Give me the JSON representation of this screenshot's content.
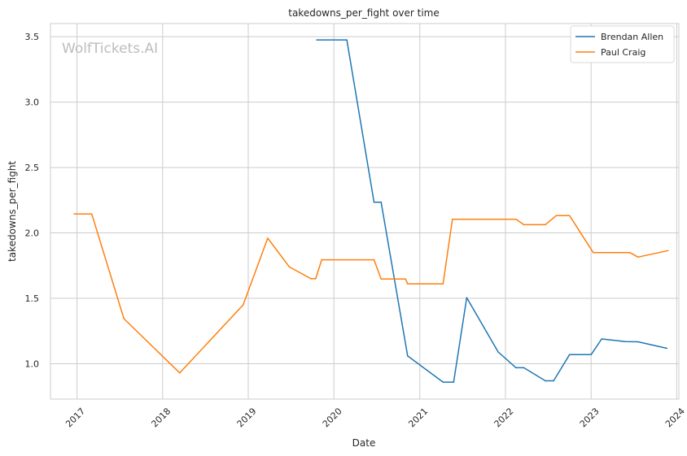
{
  "chart_data": {
    "type": "line",
    "title": "takedowns_per_fight over time",
    "xlabel": "Date",
    "ylabel": "takedowns_per_fight",
    "watermark": "WolfTickets.AI",
    "ylim": [
      0.73,
      3.6
    ],
    "xlim": [
      "2016-09-10",
      "2024-01-10"
    ],
    "x_ticks": [
      "2017",
      "2018",
      "2019",
      "2020",
      "2021",
      "2022",
      "2023",
      "2024"
    ],
    "y_ticks": [
      "1.0",
      "1.5",
      "2.0",
      "2.5",
      "3.0",
      "3.5"
    ],
    "grid": true,
    "legend_position": "top-right",
    "series": [
      {
        "name": "Brendan Allen",
        "color": "#1f77b4",
        "points": [
          [
            "2019-10-20",
            3.475
          ],
          [
            "2020-02-25",
            3.475
          ],
          [
            "2020-06-20",
            2.235
          ],
          [
            "2020-07-20",
            2.235
          ],
          [
            "2020-11-10",
            1.06
          ],
          [
            "2021-04-10",
            0.86
          ],
          [
            "2021-05-25",
            0.86
          ],
          [
            "2021-07-20",
            1.505
          ],
          [
            "2021-12-01",
            1.09
          ],
          [
            "2022-02-15",
            0.97
          ],
          [
            "2022-03-20",
            0.97
          ],
          [
            "2022-06-20",
            0.87
          ],
          [
            "2022-07-25",
            0.87
          ],
          [
            "2022-10-01",
            1.07
          ],
          [
            "2023-01-01",
            1.07
          ],
          [
            "2023-02-15",
            1.19
          ],
          [
            "2023-05-25",
            1.17
          ],
          [
            "2023-07-20",
            1.168
          ],
          [
            "2023-11-20",
            1.118
          ]
        ]
      },
      {
        "name": "Paul Craig",
        "color": "#ff7f0e",
        "points": [
          [
            "2016-12-20",
            2.145
          ],
          [
            "2017-03-05",
            2.145
          ],
          [
            "2017-07-20",
            1.345
          ],
          [
            "2018-03-15",
            0.93
          ],
          [
            "2018-12-10",
            1.45
          ],
          [
            "2019-03-25",
            1.96
          ],
          [
            "2019-06-25",
            1.74
          ],
          [
            "2019-09-25",
            1.65
          ],
          [
            "2019-10-15",
            1.65
          ],
          [
            "2019-11-10",
            1.795
          ],
          [
            "2020-06-20",
            1.795
          ],
          [
            "2020-07-20",
            1.648
          ],
          [
            "2020-11-01",
            1.648
          ],
          [
            "2020-11-10",
            1.61
          ],
          [
            "2021-04-10",
            1.61
          ],
          [
            "2021-05-20",
            2.105
          ],
          [
            "2022-02-15",
            2.105
          ],
          [
            "2022-03-20",
            2.063
          ],
          [
            "2022-06-20",
            2.063
          ],
          [
            "2022-08-05",
            2.132
          ],
          [
            "2022-10-01",
            2.132
          ],
          [
            "2023-01-10",
            1.85
          ],
          [
            "2023-06-15",
            1.85
          ],
          [
            "2023-07-20",
            1.815
          ],
          [
            "2023-11-25",
            1.865
          ]
        ]
      }
    ]
  }
}
